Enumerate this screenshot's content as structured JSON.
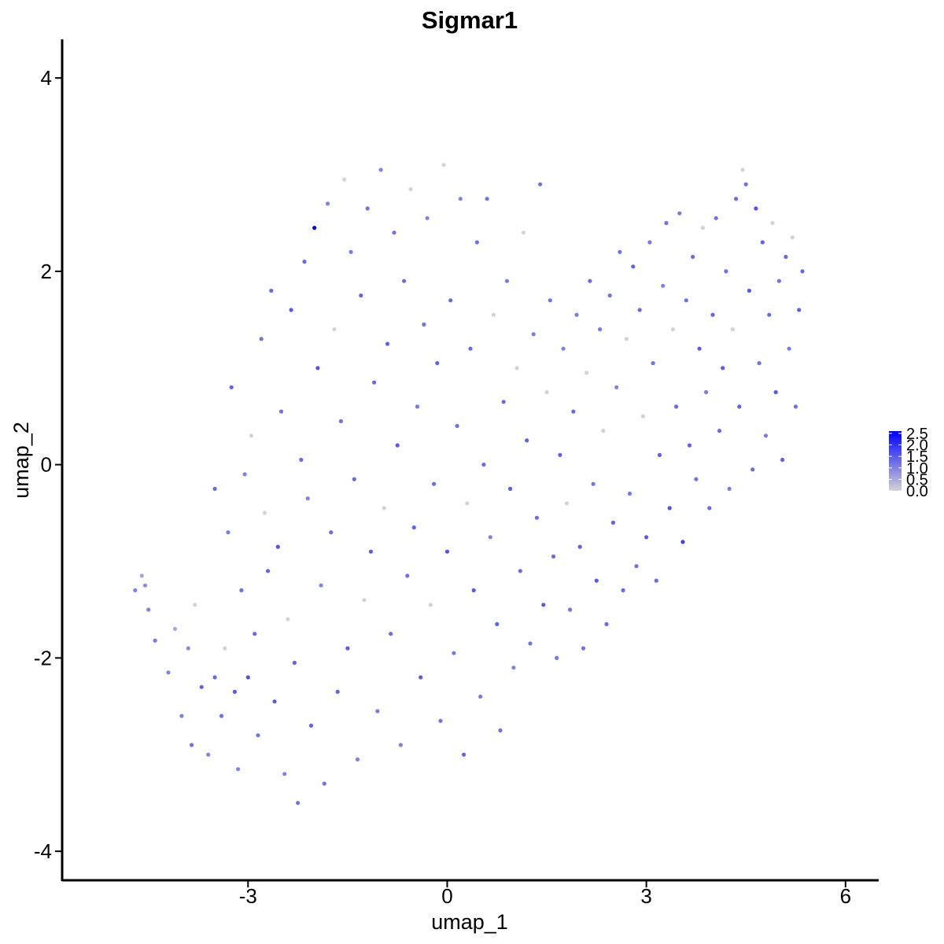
{
  "chart_data": {
    "type": "scatter",
    "title": "Sigmar1",
    "xlabel": "umap_1",
    "ylabel": "umap_2",
    "xlim": [
      -5.8,
      6.5
    ],
    "ylim": [
      -4.3,
      4.4
    ],
    "x_ticks": [
      {
        "value": -3,
        "label": "-3"
      },
      {
        "value": 0,
        "label": "0"
      },
      {
        "value": 3,
        "label": "3"
      },
      {
        "value": 6,
        "label": "6"
      }
    ],
    "y_ticks": [
      {
        "value": -4,
        "label": "-4"
      },
      {
        "value": -2,
        "label": "-2"
      },
      {
        "value": 0,
        "label": "0"
      },
      {
        "value": 2,
        "label": "2"
      },
      {
        "value": 4,
        "label": "4"
      }
    ],
    "grid": false,
    "colorbar": {
      "position": "right",
      "low_color": "#d3d3d3",
      "high_color": "#0000ff",
      "min": 0,
      "max": 2.6,
      "ticks": [
        {
          "value": 0.0,
          "label": "0.0"
        },
        {
          "value": 0.5,
          "label": "0.5"
        },
        {
          "value": 1.0,
          "label": "1.0"
        },
        {
          "value": 1.5,
          "label": "1.5"
        },
        {
          "value": 2.0,
          "label": "2.0"
        },
        {
          "value": 2.5,
          "label": "2.5"
        }
      ]
    },
    "points_note": "x = umap_1, y = umap_2, v = Sigmar1 expression",
    "points": [
      {
        "x": -4.7,
        "y": -1.3,
        "v": 1.0
      },
      {
        "x": -4.6,
        "y": -1.15,
        "v": 0.6
      },
      {
        "x": -4.55,
        "y": -1.25,
        "v": 0.9
      },
      {
        "x": -4.5,
        "y": -1.5,
        "v": 1.0
      },
      {
        "x": -4.4,
        "y": -1.82,
        "v": 1.1
      },
      {
        "x": -4.2,
        "y": -2.15,
        "v": 1.0
      },
      {
        "x": -4.1,
        "y": -1.7,
        "v": 0.5
      },
      {
        "x": -4.0,
        "y": -2.6,
        "v": 1.0
      },
      {
        "x": -3.9,
        "y": -1.9,
        "v": 0.9
      },
      {
        "x": -3.85,
        "y": -2.9,
        "v": 1.2
      },
      {
        "x": -3.8,
        "y": -1.45,
        "v": 0.0
      },
      {
        "x": -3.7,
        "y": -2.3,
        "v": 1.4
      },
      {
        "x": -3.6,
        "y": -3.0,
        "v": 1.0
      },
      {
        "x": -3.5,
        "y": -2.2,
        "v": 1.3
      },
      {
        "x": -3.5,
        "y": -0.25,
        "v": 1.3
      },
      {
        "x": -3.4,
        "y": -2.6,
        "v": 1.2
      },
      {
        "x": -3.35,
        "y": -1.9,
        "v": 0.0
      },
      {
        "x": -3.3,
        "y": -0.7,
        "v": 1.1
      },
      {
        "x": -3.25,
        "y": 0.8,
        "v": 1.4
      },
      {
        "x": -3.2,
        "y": -2.35,
        "v": 1.5
      },
      {
        "x": -3.15,
        "y": -3.15,
        "v": 1.0
      },
      {
        "x": -3.1,
        "y": -1.3,
        "v": 1.2
      },
      {
        "x": -3.05,
        "y": -0.1,
        "v": 1.0
      },
      {
        "x": -3.0,
        "y": -2.2,
        "v": 1.6
      },
      {
        "x": -2.95,
        "y": 0.3,
        "v": 0.0
      },
      {
        "x": -2.9,
        "y": -1.75,
        "v": 1.3
      },
      {
        "x": -2.85,
        "y": -2.8,
        "v": 1.2
      },
      {
        "x": -2.8,
        "y": 1.3,
        "v": 1.2
      },
      {
        "x": -2.75,
        "y": -0.5,
        "v": 0.0
      },
      {
        "x": -2.7,
        "y": -1.1,
        "v": 1.4
      },
      {
        "x": -2.65,
        "y": 1.8,
        "v": 1.3
      },
      {
        "x": -2.6,
        "y": -2.45,
        "v": 1.5
      },
      {
        "x": -2.55,
        "y": -0.85,
        "v": 1.6
      },
      {
        "x": -2.5,
        "y": 0.55,
        "v": 1.2
      },
      {
        "x": -2.45,
        "y": -3.2,
        "v": 1.0
      },
      {
        "x": -2.4,
        "y": -1.6,
        "v": 0.0
      },
      {
        "x": -2.35,
        "y": 1.6,
        "v": 1.5
      },
      {
        "x": -2.3,
        "y": -2.05,
        "v": 1.4
      },
      {
        "x": -2.25,
        "y": -3.5,
        "v": 1.2
      },
      {
        "x": -2.2,
        "y": 0.05,
        "v": 1.3
      },
      {
        "x": -2.15,
        "y": 2.1,
        "v": 1.3
      },
      {
        "x": -2.1,
        "y": -0.35,
        "v": 1.0
      },
      {
        "x": -2.05,
        "y": -2.7,
        "v": 1.4
      },
      {
        "x": -2.0,
        "y": 2.45,
        "v": 2.6
      },
      {
        "x": -1.95,
        "y": 1.0,
        "v": 1.6
      },
      {
        "x": -1.9,
        "y": -1.25,
        "v": 1.0
      },
      {
        "x": -1.85,
        "y": -3.3,
        "v": 1.2
      },
      {
        "x": -1.8,
        "y": 2.7,
        "v": 1.0
      },
      {
        "x": -1.75,
        "y": -0.7,
        "v": 1.3
      },
      {
        "x": -1.7,
        "y": 1.4,
        "v": 0.0
      },
      {
        "x": -1.65,
        "y": -2.35,
        "v": 1.4
      },
      {
        "x": -1.6,
        "y": 0.45,
        "v": 1.2
      },
      {
        "x": -1.55,
        "y": 2.95,
        "v": 0.0
      },
      {
        "x": -1.5,
        "y": -1.9,
        "v": 1.5
      },
      {
        "x": -1.45,
        "y": 2.2,
        "v": 1.1
      },
      {
        "x": -1.4,
        "y": -0.15,
        "v": 1.3
      },
      {
        "x": -1.35,
        "y": -3.05,
        "v": 1.0
      },
      {
        "x": -1.3,
        "y": 1.75,
        "v": 1.4
      },
      {
        "x": -1.25,
        "y": -1.4,
        "v": 0.0
      },
      {
        "x": -1.2,
        "y": 2.65,
        "v": 1.2
      },
      {
        "x": -1.15,
        "y": -0.9,
        "v": 1.5
      },
      {
        "x": -1.1,
        "y": 0.85,
        "v": 1.3
      },
      {
        "x": -1.05,
        "y": -2.55,
        "v": 1.1
      },
      {
        "x": -1.0,
        "y": 3.05,
        "v": 1.0
      },
      {
        "x": -0.95,
        "y": -0.45,
        "v": 0.0
      },
      {
        "x": -0.9,
        "y": 1.25,
        "v": 1.4
      },
      {
        "x": -0.85,
        "y": -1.75,
        "v": 1.3
      },
      {
        "x": -0.8,
        "y": 2.4,
        "v": 1.2
      },
      {
        "x": -0.75,
        "y": 0.2,
        "v": 1.5
      },
      {
        "x": -0.7,
        "y": -2.9,
        "v": 1.0
      },
      {
        "x": -0.65,
        "y": 1.9,
        "v": 1.3
      },
      {
        "x": -0.6,
        "y": -1.15,
        "v": 1.2
      },
      {
        "x": -0.55,
        "y": 2.85,
        "v": 0.0
      },
      {
        "x": -0.5,
        "y": -0.65,
        "v": 1.4
      },
      {
        "x": -0.45,
        "y": 0.6,
        "v": 1.1
      },
      {
        "x": -0.4,
        "y": -2.2,
        "v": 1.5
      },
      {
        "x": -0.35,
        "y": 1.45,
        "v": 1.2
      },
      {
        "x": -0.3,
        "y": 2.55,
        "v": 1.0
      },
      {
        "x": -0.25,
        "y": -1.45,
        "v": 0.0
      },
      {
        "x": -0.2,
        "y": -0.2,
        "v": 1.3
      },
      {
        "x": -0.15,
        "y": 1.05,
        "v": 1.4
      },
      {
        "x": -0.1,
        "y": -2.65,
        "v": 1.2
      },
      {
        "x": -0.05,
        "y": 3.1,
        "v": 0.0
      },
      {
        "x": 0.0,
        "y": -0.9,
        "v": 1.6
      },
      {
        "x": 0.05,
        "y": 1.7,
        "v": 1.3
      },
      {
        "x": 0.1,
        "y": -1.95,
        "v": 1.1
      },
      {
        "x": 0.15,
        "y": 0.4,
        "v": 1.2
      },
      {
        "x": 0.2,
        "y": 2.75,
        "v": 1.0
      },
      {
        "x": 0.25,
        "y": -3.0,
        "v": 1.4
      },
      {
        "x": 0.3,
        "y": -0.4,
        "v": 0.0
      },
      {
        "x": 0.35,
        "y": 1.2,
        "v": 1.3
      },
      {
        "x": 0.4,
        "y": -1.3,
        "v": 1.5
      },
      {
        "x": 0.45,
        "y": 2.3,
        "v": 1.2
      },
      {
        "x": 0.5,
        "y": -2.4,
        "v": 1.1
      },
      {
        "x": 0.55,
        "y": 0.0,
        "v": 1.3
      },
      {
        "x": 0.6,
        "y": 2.75,
        "v": 1.2
      },
      {
        "x": 0.65,
        "y": -0.75,
        "v": 1.0
      },
      {
        "x": 0.7,
        "y": 1.55,
        "v": 0.0
      },
      {
        "x": 0.75,
        "y": -1.65,
        "v": 1.4
      },
      {
        "x": 0.8,
        "y": -2.75,
        "v": 1.2
      },
      {
        "x": 0.85,
        "y": 0.65,
        "v": 1.3
      },
      {
        "x": 0.9,
        "y": 1.9,
        "v": 1.1
      },
      {
        "x": 0.95,
        "y": -0.25,
        "v": 1.5
      },
      {
        "x": 1.0,
        "y": -2.1,
        "v": 1.0
      },
      {
        "x": 1.05,
        "y": 1.0,
        "v": 0.0
      },
      {
        "x": 1.1,
        "y": -1.1,
        "v": 1.3
      },
      {
        "x": 1.15,
        "y": 2.4,
        "v": 0.0
      },
      {
        "x": 1.2,
        "y": 0.25,
        "v": 1.4
      },
      {
        "x": 1.25,
        "y": -1.85,
        "v": 1.2
      },
      {
        "x": 1.3,
        "y": 1.35,
        "v": 1.1
      },
      {
        "x": 1.35,
        "y": -0.55,
        "v": 1.3
      },
      {
        "x": 1.4,
        "y": 2.9,
        "v": 1.2
      },
      {
        "x": 1.45,
        "y": -1.45,
        "v": 1.5
      },
      {
        "x": 1.5,
        "y": 0.75,
        "v": 0.0
      },
      {
        "x": 1.55,
        "y": 1.7,
        "v": 1.2
      },
      {
        "x": 1.6,
        "y": -0.95,
        "v": 1.3
      },
      {
        "x": 1.65,
        "y": -2.0,
        "v": 1.1
      },
      {
        "x": 1.7,
        "y": 0.1,
        "v": 1.4
      },
      {
        "x": 1.75,
        "y": 1.2,
        "v": 1.0
      },
      {
        "x": 1.8,
        "y": -0.4,
        "v": 0.0
      },
      {
        "x": 1.85,
        "y": -1.5,
        "v": 1.2
      },
      {
        "x": 1.9,
        "y": 0.55,
        "v": 1.3
      },
      {
        "x": 1.95,
        "y": 1.55,
        "v": 1.1
      },
      {
        "x": 2.0,
        "y": -0.85,
        "v": 1.4
      },
      {
        "x": 2.05,
        "y": -1.9,
        "v": 1.2
      },
      {
        "x": 2.1,
        "y": 0.95,
        "v": 0.0
      },
      {
        "x": 2.15,
        "y": 1.9,
        "v": 1.3
      },
      {
        "x": 2.2,
        "y": -0.2,
        "v": 1.2
      },
      {
        "x": 2.25,
        "y": -1.2,
        "v": 1.5
      },
      {
        "x": 2.3,
        "y": 1.4,
        "v": 1.1
      },
      {
        "x": 2.35,
        "y": 0.35,
        "v": 0.0
      },
      {
        "x": 2.4,
        "y": -1.65,
        "v": 1.3
      },
      {
        "x": 2.45,
        "y": 1.75,
        "v": 1.2
      },
      {
        "x": 2.5,
        "y": -0.6,
        "v": 1.4
      },
      {
        "x": 2.55,
        "y": 0.8,
        "v": 1.0
      },
      {
        "x": 2.6,
        "y": 2.2,
        "v": 1.2
      },
      {
        "x": 2.65,
        "y": -1.3,
        "v": 1.3
      },
      {
        "x": 2.7,
        "y": 1.3,
        "v": 0.0
      },
      {
        "x": 2.75,
        "y": -0.3,
        "v": 1.1
      },
      {
        "x": 2.8,
        "y": 2.05,
        "v": 1.4
      },
      {
        "x": 2.85,
        "y": -1.05,
        "v": 1.2
      },
      {
        "x": 2.9,
        "y": 1.6,
        "v": 1.3
      },
      {
        "x": 2.95,
        "y": 0.5,
        "v": 0.0
      },
      {
        "x": 3.0,
        "y": -0.75,
        "v": 1.5
      },
      {
        "x": 3.05,
        "y": 2.3,
        "v": 1.1
      },
      {
        "x": 3.1,
        "y": 1.05,
        "v": 1.2
      },
      {
        "x": 3.15,
        "y": -1.2,
        "v": 1.3
      },
      {
        "x": 3.2,
        "y": 0.1,
        "v": 1.4
      },
      {
        "x": 3.25,
        "y": 1.85,
        "v": 1.0
      },
      {
        "x": 3.3,
        "y": 2.5,
        "v": 1.2
      },
      {
        "x": 3.35,
        "y": -0.45,
        "v": 1.6
      },
      {
        "x": 3.4,
        "y": 1.4,
        "v": 0.0
      },
      {
        "x": 3.45,
        "y": 0.6,
        "v": 1.3
      },
      {
        "x": 3.5,
        "y": 2.6,
        "v": 1.1
      },
      {
        "x": 3.55,
        "y": -0.8,
        "v": 1.8
      },
      {
        "x": 3.6,
        "y": 1.7,
        "v": 1.2
      },
      {
        "x": 3.65,
        "y": 0.2,
        "v": 1.4
      },
      {
        "x": 3.7,
        "y": 2.15,
        "v": 1.3
      },
      {
        "x": 3.75,
        "y": -0.15,
        "v": 1.2
      },
      {
        "x": 3.8,
        "y": 1.2,
        "v": 1.5
      },
      {
        "x": 3.85,
        "y": 2.45,
        "v": 0.0
      },
      {
        "x": 3.9,
        "y": 0.75,
        "v": 1.1
      },
      {
        "x": 3.95,
        "y": -0.45,
        "v": 1.3
      },
      {
        "x": 4.0,
        "y": 1.55,
        "v": 1.4
      },
      {
        "x": 4.05,
        "y": 2.55,
        "v": 1.2
      },
      {
        "x": 4.1,
        "y": 0.35,
        "v": 1.3
      },
      {
        "x": 4.15,
        "y": 1.0,
        "v": 1.5
      },
      {
        "x": 4.2,
        "y": 2.0,
        "v": 1.2
      },
      {
        "x": 4.25,
        "y": -0.25,
        "v": 1.1
      },
      {
        "x": 4.3,
        "y": 1.4,
        "v": 0.0
      },
      {
        "x": 4.35,
        "y": 2.75,
        "v": 1.3
      },
      {
        "x": 4.4,
        "y": 0.6,
        "v": 1.4
      },
      {
        "x": 4.45,
        "y": 3.05,
        "v": 0.0
      },
      {
        "x": 4.5,
        "y": 2.9,
        "v": 1.2
      },
      {
        "x": 4.55,
        "y": 1.8,
        "v": 1.5
      },
      {
        "x": 4.6,
        "y": -0.05,
        "v": 1.3
      },
      {
        "x": 4.65,
        "y": 2.65,
        "v": 1.6
      },
      {
        "x": 4.7,
        "y": 1.05,
        "v": 1.2
      },
      {
        "x": 4.75,
        "y": 2.3,
        "v": 1.4
      },
      {
        "x": 4.8,
        "y": 0.3,
        "v": 1.1
      },
      {
        "x": 4.85,
        "y": 1.55,
        "v": 1.3
      },
      {
        "x": 4.9,
        "y": 2.5,
        "v": 0.0
      },
      {
        "x": 4.95,
        "y": 0.75,
        "v": 1.5
      },
      {
        "x": 5.0,
        "y": 1.9,
        "v": 1.2
      },
      {
        "x": 5.05,
        "y": 0.05,
        "v": 1.4
      },
      {
        "x": 5.1,
        "y": 2.15,
        "v": 1.3
      },
      {
        "x": 5.15,
        "y": 1.2,
        "v": 1.1
      },
      {
        "x": 5.2,
        "y": 2.35,
        "v": 0.0
      },
      {
        "x": 5.25,
        "y": 0.6,
        "v": 1.2
      },
      {
        "x": 5.3,
        "y": 1.6,
        "v": 1.4
      },
      {
        "x": 5.35,
        "y": 2.0,
        "v": 1.3
      }
    ]
  }
}
